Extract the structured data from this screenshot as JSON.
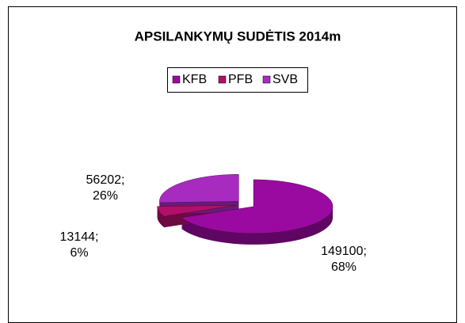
{
  "chart_data": {
    "type": "pie",
    "title": "APSILANKYMŲ SUDĖTIS 2014m",
    "categories": [
      "KFB",
      "PFB",
      "SVB"
    ],
    "values": [
      149100,
      13144,
      56202
    ],
    "value_labels": [
      [
        "149100;",
        "68%"
      ],
      [
        "13144;",
        "6%"
      ],
      [
        "56202;",
        "26%"
      ]
    ],
    "colors": [
      "#9a0aa0",
      "#b0106a",
      "#a82bc0"
    ],
    "legend": "top"
  }
}
